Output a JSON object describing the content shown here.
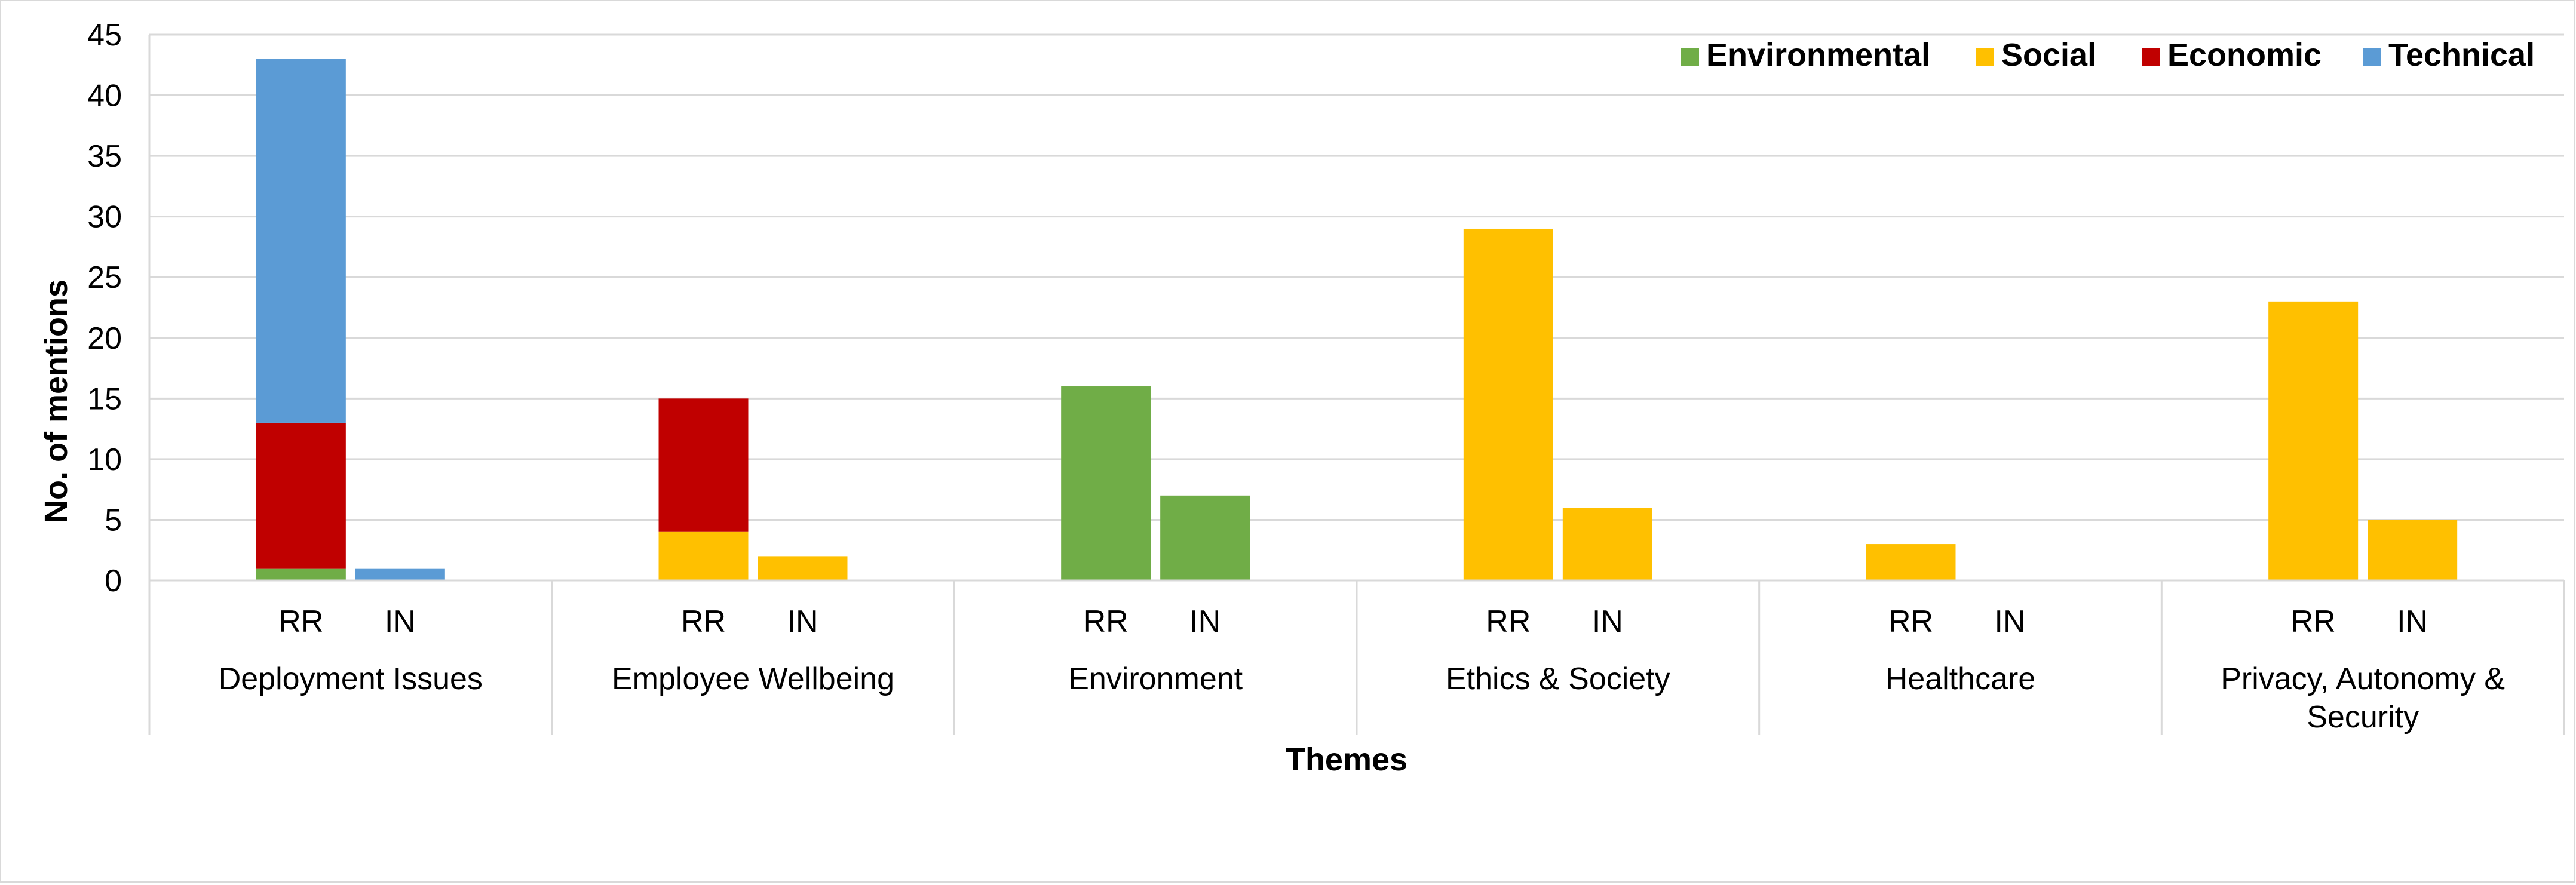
{
  "chart_data": {
    "type": "bar",
    "stacked": true,
    "xlabel": "Themes",
    "ylabel": "No. of mentions",
    "ylim": [
      0,
      45
    ],
    "yticks": [
      0,
      5,
      10,
      15,
      20,
      25,
      30,
      35,
      40,
      45
    ],
    "grid": true,
    "legend_position": "top-right",
    "sub_categories": [
      "RR",
      "IN"
    ],
    "categories": [
      "Deployment Issues",
      "Employee Wellbeing",
      "Environment",
      "Ethics & Society",
      "Healthcare",
      "Privacy, Autonomy & Security"
    ],
    "series": [
      {
        "name": "Environmental",
        "color": "#70ad47",
        "values": [
          [
            1,
            0
          ],
          [
            0,
            0
          ],
          [
            16,
            7
          ],
          [
            0,
            0
          ],
          [
            0,
            0
          ],
          [
            0,
            0
          ]
        ]
      },
      {
        "name": "Social",
        "color": "#ffc000",
        "values": [
          [
            0,
            0
          ],
          [
            4,
            2
          ],
          [
            0,
            0
          ],
          [
            29,
            6
          ],
          [
            3,
            0
          ],
          [
            23,
            5
          ]
        ]
      },
      {
        "name": "Economic",
        "color": "#c00000",
        "values": [
          [
            12,
            0
          ],
          [
            11,
            0
          ],
          [
            0,
            0
          ],
          [
            0,
            0
          ],
          [
            0,
            0
          ],
          [
            0,
            0
          ]
        ]
      },
      {
        "name": "Technical",
        "color": "#5b9bd5",
        "values": [
          [
            30,
            1
          ],
          [
            0,
            0
          ],
          [
            0,
            0
          ],
          [
            0,
            0
          ],
          [
            0,
            0
          ],
          [
            0,
            0
          ]
        ]
      }
    ]
  }
}
